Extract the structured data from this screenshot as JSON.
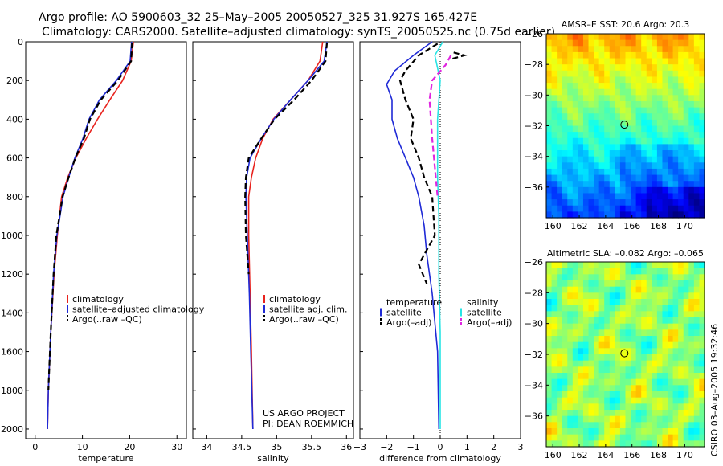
{
  "figure": {
    "title_line1": "Argo profile: AO 5900603_32 25–May–2005 20050527_325 31.927S 165.427E",
    "title_line2": "Climatology: CARS2000. Satellite–adjusted climatology: synTS_20050525.nc (0.75d earlier)",
    "side_stamp": "CSIRO 03–Aug–2005 19:32:46",
    "project_line1": "US ARGO PROJECT",
    "project_line2": "PI: DEAN ROEMMICH"
  },
  "chart_data": [
    {
      "type": "line",
      "xlabel": "temperature",
      "xlim": [
        -2,
        32
      ],
      "ylim": [
        2050,
        0
      ],
      "y_reversed": true,
      "xticks": [
        0,
        10,
        20,
        30
      ],
      "yticks": [
        0,
        200,
        400,
        600,
        800,
        1000,
        1200,
        1400,
        1600,
        1800,
        2000
      ],
      "legend": [
        "climatology",
        "satellite–adjusted climatology",
        "Argo(..raw –QC)"
      ],
      "series": [
        {
          "name": "climatology",
          "color": "#e8231e",
          "dash": "solid",
          "x": [
            20.8,
            20.3,
            18.5,
            15.8,
            13.2,
            10.8,
            8.6,
            6.9,
            5.6,
            4.7,
            4.0,
            3.3,
            2.8,
            2.6
          ],
          "y": [
            0,
            100,
            200,
            300,
            400,
            500,
            600,
            700,
            800,
            1000,
            1200,
            1500,
            1800,
            2000
          ]
        },
        {
          "name": "satellite–adjusted climatology",
          "color": "#1f2ad6",
          "dash": "solid",
          "x": [
            20.4,
            20.1,
            17.2,
            13.6,
            11.4,
            10.1,
            8.4,
            7.1,
            5.9,
            4.6,
            3.9,
            3.3,
            2.8,
            2.6
          ],
          "y": [
            0,
            100,
            200,
            300,
            400,
            500,
            600,
            700,
            800,
            1000,
            1200,
            1500,
            1800,
            2000
          ]
        },
        {
          "name": "Argo(..raw –QC)",
          "color": "#000000",
          "dash": "dashed",
          "x": [
            20.5,
            20.3,
            17.5,
            13.9,
            11.6,
            10.3,
            8.5,
            7.1,
            5.8,
            4.5,
            3.9,
            3.3,
            2.8
          ],
          "y": [
            5,
            100,
            200,
            300,
            400,
            500,
            600,
            700,
            800,
            1000,
            1200,
            1500,
            1800
          ]
        }
      ]
    },
    {
      "type": "line",
      "xlabel": "salinity",
      "xlim": [
        33.8,
        36.1
      ],
      "ylim": [
        2050,
        0
      ],
      "y_reversed": true,
      "xticks": [
        34,
        34.5,
        35,
        35.5,
        36
      ],
      "legend": [
        "climatology",
        "satellite adj. clim.",
        "Argo(..raw –QC)"
      ],
      "series": [
        {
          "name": "climatology",
          "color": "#e8231e",
          "dash": "solid",
          "x": [
            35.66,
            35.62,
            35.45,
            35.2,
            34.95,
            34.8,
            34.7,
            34.64,
            34.6,
            34.6,
            34.62,
            34.64,
            34.66
          ],
          "y": [
            0,
            100,
            200,
            300,
            400,
            500,
            600,
            700,
            800,
            1000,
            1300,
            1600,
            2000
          ]
        },
        {
          "name": "satellite adj. clim.",
          "color": "#1f2ad6",
          "dash": "solid",
          "x": [
            35.72,
            35.68,
            35.45,
            35.2,
            34.96,
            34.78,
            34.62,
            34.57,
            34.56,
            34.58,
            34.61,
            34.63,
            34.66
          ],
          "y": [
            0,
            100,
            200,
            300,
            400,
            500,
            600,
            700,
            800,
            1000,
            1300,
            1600,
            2000
          ]
        },
        {
          "name": "Argo(..raw –QC)",
          "color": "#000000",
          "dash": "dashed",
          "x": [
            35.72,
            35.7,
            35.5,
            35.25,
            34.97,
            34.78,
            34.6,
            34.56,
            34.55,
            34.56,
            34.6
          ],
          "y": [
            5,
            100,
            200,
            300,
            400,
            500,
            600,
            700,
            800,
            1000,
            1200
          ]
        }
      ]
    },
    {
      "type": "line",
      "xlabel": "difference from climatology",
      "xlim": [
        -3,
        3
      ],
      "ylim": [
        2050,
        0
      ],
      "y_reversed": true,
      "xticks": [
        -3,
        -2,
        -1,
        0,
        1,
        2,
        3
      ],
      "legend_temperature": [
        "temperature",
        "satellite",
        "Argo(–adj)"
      ],
      "legend_salinity": [
        "salinity",
        "satellite",
        "Argo(–adj)"
      ],
      "series": [
        {
          "name": "satellite",
          "group": "temperature",
          "color": "#1f2ad6",
          "dash": "solid",
          "x": [
            -0.3,
            -1.0,
            -1.7,
            -2.0,
            -1.8,
            -1.8,
            -1.6,
            -1.3,
            -1.0,
            -0.8,
            -0.6,
            -0.5,
            -0.3,
            -0.1,
            -0.05
          ],
          "y": [
            0,
            70,
            150,
            220,
            300,
            400,
            500,
            600,
            700,
            800,
            950,
            1100,
            1300,
            1600,
            2000
          ]
        },
        {
          "name": "Argo(–adj)",
          "group": "temperature",
          "color": "#000000",
          "dash": "dashed",
          "x": [
            -0.1,
            -0.8,
            -1.3,
            -1.5,
            -1.3,
            -1.0,
            -1.1,
            -0.8,
            -0.6,
            -0.3,
            -0.2,
            -0.4,
            -0.8,
            -0.5
          ],
          "y": [
            10,
            70,
            150,
            200,
            300,
            400,
            500,
            600,
            700,
            800,
            1000,
            1050,
            1150,
            1250
          ]
        },
        {
          "name": "Argo(–adj)",
          "group": "salinity",
          "color": "#000000",
          "dash": "dashed",
          "x": [
            0.5,
            0.9,
            0.4
          ],
          "y": [
            55,
            70,
            90
          ]
        },
        {
          "name": "satellite",
          "group": "salinity",
          "color": "#28e4e4",
          "dash": "solid",
          "x": [
            0.1,
            -0.2,
            0.0,
            -0.1,
            -0.1,
            -0.1,
            -0.05,
            -0.05,
            0.0,
            0.0,
            0.0
          ],
          "y": [
            0,
            70,
            200,
            400,
            500,
            700,
            900,
            1200,
            1500,
            1800,
            2000
          ]
        },
        {
          "name": "Argo(–adj)",
          "group": "salinity",
          "color": "#e026e0",
          "dash": "dashed",
          "x": [
            0.4,
            0.2,
            -0.3,
            -0.4,
            -0.3,
            -0.1
          ],
          "y": [
            70,
            120,
            200,
            300,
            500,
            800
          ]
        }
      ]
    },
    {
      "type": "heatmap",
      "title": "AMSR–E SST: 20.6 Argo: 20.3",
      "xlim": [
        159.5,
        171.5
      ],
      "ylim": [
        -38,
        -26
      ],
      "xticks": [
        160,
        162,
        164,
        166,
        168,
        170
      ],
      "yticks": [
        -26,
        -28,
        -30,
        -32,
        -34,
        -36
      ],
      "float_position": {
        "lon": 165.427,
        "lat": -31.927
      },
      "colormap": "jet"
    },
    {
      "type": "heatmap",
      "title": "Altimetric SLA: –0.082 Argo: –0.065",
      "xlim": [
        159.5,
        171.5
      ],
      "ylim": [
        -38,
        -26
      ],
      "xticks": [
        160,
        162,
        164,
        166,
        168,
        170
      ],
      "yticks": [
        -26,
        -28,
        -30,
        -32,
        -34,
        -36
      ],
      "float_position": {
        "lon": 165.427,
        "lat": -31.927
      },
      "colormap": "jet"
    }
  ]
}
